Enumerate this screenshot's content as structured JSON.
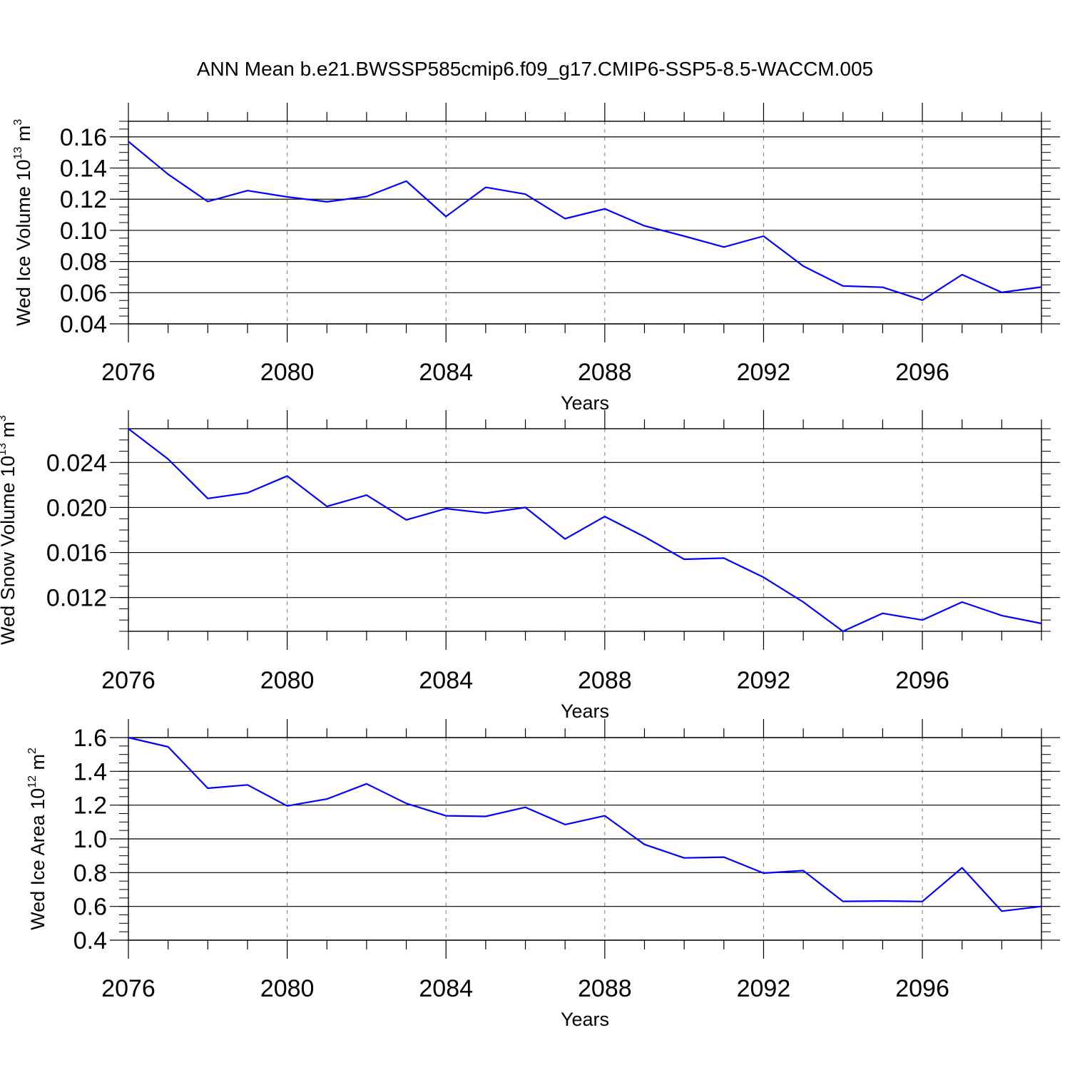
{
  "title": "ANN Mean b.e21.BWSSP585cmip6.f09_g17.CMIP6-SSP5-8.5-WACCM.005",
  "line_color": "#0000ff",
  "chart_data": [
    {
      "type": "line",
      "ylabel": {
        "text": "Wed Ice Volume 10",
        "exp": "13",
        "unit": " m",
        "unit_exp": "3"
      },
      "xlabel": "Years",
      "x": [
        2076,
        2077,
        2078,
        2079,
        2080,
        2081,
        2082,
        2083,
        2084,
        2085,
        2086,
        2087,
        2088,
        2089,
        2090,
        2091,
        2092,
        2093,
        2094,
        2095,
        2096,
        2097,
        2098,
        2099
      ],
      "values": [
        0.157,
        0.136,
        0.1185,
        0.1255,
        0.1215,
        0.1183,
        0.1217,
        0.1316,
        0.1089,
        0.1276,
        0.1232,
        0.1075,
        0.1138,
        0.1029,
        0.0963,
        0.0893,
        0.0963,
        0.0771,
        0.0643,
        0.0635,
        0.0552,
        0.0716,
        0.0602,
        0.0636
      ],
      "xlim": [
        2076,
        2099
      ],
      "ylim": [
        0.04,
        0.17
      ],
      "xticks": [
        "2076",
        "2080",
        "2084",
        "2088",
        "2092",
        "2096"
      ],
      "yticks": [
        "0.04",
        "0.06",
        "0.08",
        "0.10",
        "0.12",
        "0.14",
        "0.16"
      ]
    },
    {
      "type": "line",
      "ylabel": {
        "text": "Wed Snow Volume 10",
        "exp": "13",
        "unit": " m",
        "unit_exp": "3"
      },
      "xlabel": "Years",
      "x": [
        2076,
        2077,
        2078,
        2079,
        2080,
        2081,
        2082,
        2083,
        2084,
        2085,
        2086,
        2087,
        2088,
        2089,
        2090,
        2091,
        2092,
        2093,
        2094,
        2095,
        2096,
        2097,
        2098,
        2099
      ],
      "values": [
        0.027,
        0.0243,
        0.0208,
        0.0213,
        0.0228,
        0.0201,
        0.0211,
        0.0189,
        0.0199,
        0.0195,
        0.02,
        0.0172,
        0.0192,
        0.0174,
        0.0154,
        0.0155,
        0.0138,
        0.0116,
        0.009,
        0.0106,
        0.01,
        0.0116,
        0.0104,
        0.0097
      ],
      "xlim": [
        2076,
        2099
      ],
      "ylim": [
        0.009,
        0.027
      ],
      "xticks": [
        "2076",
        "2080",
        "2084",
        "2088",
        "2092",
        "2096"
      ],
      "yticks": [
        "0.012",
        "0.016",
        "0.020",
        "0.024"
      ]
    },
    {
      "type": "line",
      "ylabel": {
        "text": "Wed Ice Area 10",
        "exp": "12",
        "unit": " m",
        "unit_exp": "2"
      },
      "xlabel": "Years",
      "x": [
        2076,
        2077,
        2078,
        2079,
        2080,
        2081,
        2082,
        2083,
        2084,
        2085,
        2086,
        2087,
        2088,
        2089,
        2090,
        2091,
        2092,
        2093,
        2094,
        2095,
        2096,
        2097,
        2098,
        2099
      ],
      "values": [
        1.6,
        1.545,
        1.3,
        1.32,
        1.195,
        1.236,
        1.326,
        1.21,
        1.137,
        1.133,
        1.187,
        1.085,
        1.137,
        0.967,
        0.887,
        0.892,
        0.797,
        0.812,
        0.63,
        0.632,
        0.629,
        0.829,
        0.572,
        0.6
      ],
      "xlim": [
        2076,
        2099
      ],
      "ylim": [
        0.4,
        1.6
      ],
      "xticks": [
        "2076",
        "2080",
        "2084",
        "2088",
        "2092",
        "2096"
      ],
      "yticks": [
        "0.4",
        "0.6",
        "0.8",
        "1.0",
        "1.2",
        "1.4",
        "1.6"
      ]
    }
  ]
}
